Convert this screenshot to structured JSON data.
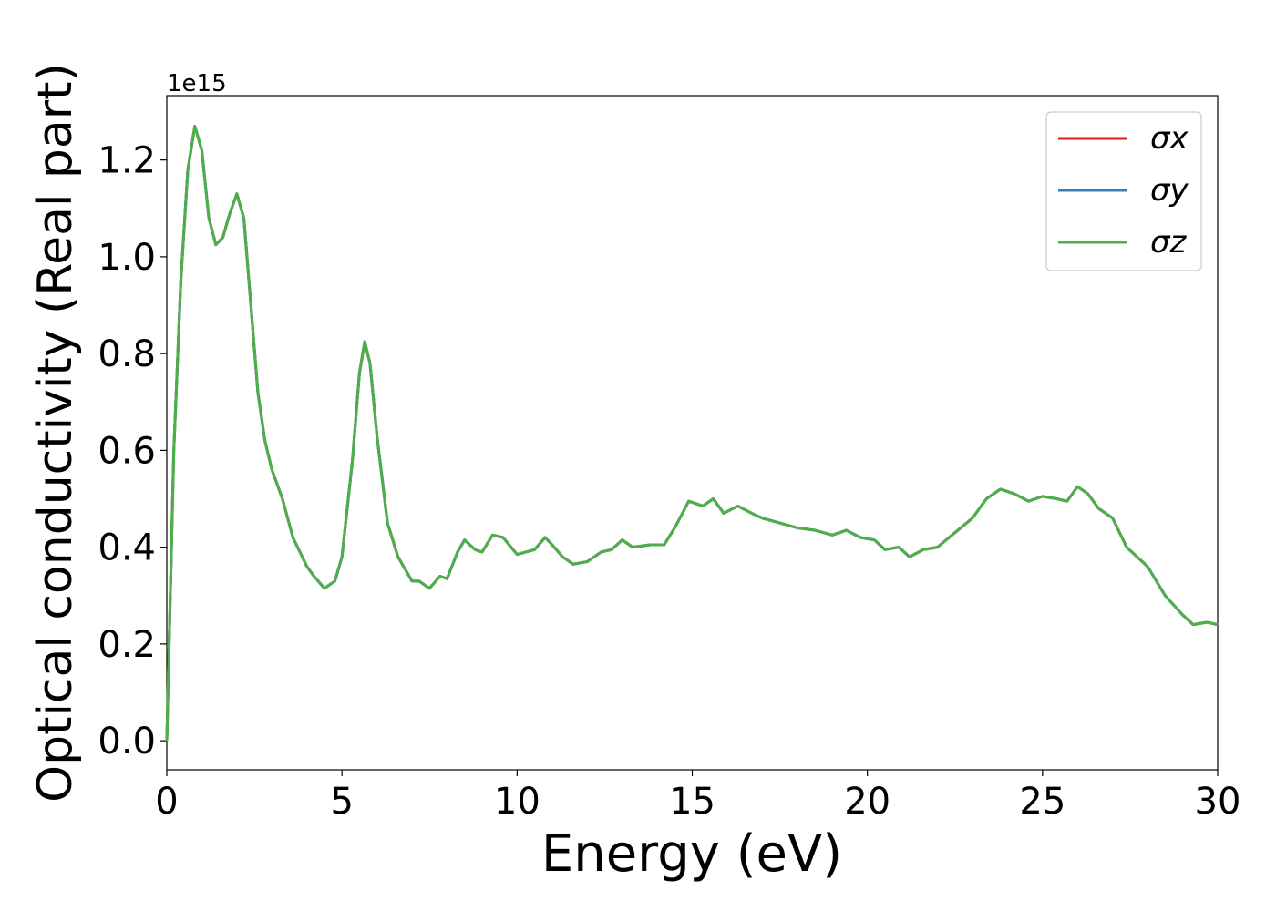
{
  "chart_data": {
    "type": "line",
    "xlabel": "Energy (eV)",
    "ylabel": "Optical conductivity (Real part)",
    "y_offset_label": "1e15",
    "x": [
      0,
      0.1,
      0.2,
      0.4,
      0.6,
      0.8,
      1.0,
      1.2,
      1.4,
      1.6,
      1.8,
      2.0,
      2.2,
      2.4,
      2.6,
      2.8,
      3.0,
      3.3,
      3.6,
      4.0,
      4.2,
      4.5,
      4.8,
      5.0,
      5.3,
      5.5,
      5.65,
      5.8,
      6.0,
      6.3,
      6.6,
      7.0,
      7.2,
      7.5,
      7.8,
      8.0,
      8.3,
      8.5,
      8.8,
      9.0,
      9.3,
      9.6,
      10.0,
      10.5,
      10.8,
      11.0,
      11.3,
      11.6,
      12.0,
      12.4,
      12.7,
      13.0,
      13.3,
      13.8,
      14.2,
      14.5,
      14.9,
      15.3,
      15.6,
      15.9,
      16.3,
      16.7,
      17.0,
      17.5,
      18.0,
      18.5,
      19.0,
      19.4,
      19.8,
      20.2,
      20.5,
      20.9,
      21.2,
      21.6,
      22.0,
      22.5,
      23.0,
      23.4,
      23.8,
      24.2,
      24.6,
      25.0,
      25.4,
      25.7,
      26.0,
      26.3,
      26.6,
      27.0,
      27.4,
      28.0,
      28.5,
      29.0,
      29.3,
      29.7,
      30.0
    ],
    "series": [
      {
        "name": "σx",
        "color": "#e41a1c",
        "values": [
          0,
          0.3,
          0.6,
          0.95,
          1.18,
          1.27,
          1.22,
          1.08,
          1.025,
          1.04,
          1.09,
          1.13,
          1.08,
          0.9,
          0.72,
          0.62,
          0.56,
          0.5,
          0.42,
          0.36,
          0.34,
          0.315,
          0.33,
          0.38,
          0.58,
          0.76,
          0.825,
          0.78,
          0.63,
          0.45,
          0.38,
          0.33,
          0.33,
          0.315,
          0.34,
          0.335,
          0.39,
          0.415,
          0.395,
          0.39,
          0.425,
          0.42,
          0.385,
          0.395,
          0.42,
          0.405,
          0.38,
          0.365,
          0.37,
          0.39,
          0.395,
          0.415,
          0.4,
          0.405,
          0.405,
          0.44,
          0.495,
          0.485,
          0.5,
          0.47,
          0.485,
          0.47,
          0.46,
          0.45,
          0.44,
          0.435,
          0.425,
          0.435,
          0.42,
          0.415,
          0.395,
          0.4,
          0.38,
          0.395,
          0.4,
          0.43,
          0.46,
          0.5,
          0.52,
          0.51,
          0.495,
          0.505,
          0.5,
          0.495,
          0.525,
          0.51,
          0.48,
          0.46,
          0.4,
          0.36,
          0.3,
          0.26,
          0.24,
          0.245,
          0.24
        ]
      },
      {
        "name": "σy",
        "color": "#377eb8",
        "values": [
          0,
          0.3,
          0.6,
          0.95,
          1.18,
          1.27,
          1.22,
          1.08,
          1.025,
          1.04,
          1.09,
          1.13,
          1.08,
          0.9,
          0.72,
          0.62,
          0.56,
          0.5,
          0.42,
          0.36,
          0.34,
          0.315,
          0.33,
          0.38,
          0.58,
          0.76,
          0.825,
          0.78,
          0.63,
          0.45,
          0.38,
          0.33,
          0.33,
          0.315,
          0.34,
          0.335,
          0.39,
          0.415,
          0.395,
          0.39,
          0.425,
          0.42,
          0.385,
          0.395,
          0.42,
          0.405,
          0.38,
          0.365,
          0.37,
          0.39,
          0.395,
          0.415,
          0.4,
          0.405,
          0.405,
          0.44,
          0.495,
          0.485,
          0.5,
          0.47,
          0.485,
          0.47,
          0.46,
          0.45,
          0.44,
          0.435,
          0.425,
          0.435,
          0.42,
          0.415,
          0.395,
          0.4,
          0.38,
          0.395,
          0.4,
          0.43,
          0.46,
          0.5,
          0.52,
          0.51,
          0.495,
          0.505,
          0.5,
          0.495,
          0.525,
          0.51,
          0.48,
          0.46,
          0.4,
          0.36,
          0.3,
          0.26,
          0.24,
          0.245,
          0.24
        ]
      },
      {
        "name": "σz",
        "color": "#4daf4a",
        "values": [
          0,
          0.3,
          0.6,
          0.95,
          1.18,
          1.27,
          1.22,
          1.08,
          1.025,
          1.04,
          1.09,
          1.13,
          1.08,
          0.9,
          0.72,
          0.62,
          0.56,
          0.5,
          0.42,
          0.36,
          0.34,
          0.315,
          0.33,
          0.38,
          0.58,
          0.76,
          0.825,
          0.78,
          0.63,
          0.45,
          0.38,
          0.33,
          0.33,
          0.315,
          0.34,
          0.335,
          0.39,
          0.415,
          0.395,
          0.39,
          0.425,
          0.42,
          0.385,
          0.395,
          0.42,
          0.405,
          0.38,
          0.365,
          0.37,
          0.39,
          0.395,
          0.415,
          0.4,
          0.405,
          0.405,
          0.44,
          0.495,
          0.485,
          0.5,
          0.47,
          0.485,
          0.47,
          0.46,
          0.45,
          0.44,
          0.435,
          0.425,
          0.435,
          0.42,
          0.415,
          0.395,
          0.4,
          0.38,
          0.395,
          0.4,
          0.43,
          0.46,
          0.5,
          0.52,
          0.51,
          0.495,
          0.505,
          0.5,
          0.495,
          0.525,
          0.51,
          0.48,
          0.46,
          0.4,
          0.36,
          0.3,
          0.26,
          0.24,
          0.245,
          0.24
        ]
      }
    ],
    "xlim": [
      0,
      30
    ],
    "xticks": [
      0,
      5,
      10,
      15,
      20,
      25,
      30
    ],
    "ylim": [
      -0.06,
      1.333
    ],
    "yticks": [
      {
        "value": 0,
        "label": "0.0"
      },
      0.2,
      0.4,
      0.6,
      0.8,
      {
        "value": 1,
        "label": "1.0"
      },
      1.2
    ],
    "grid": false,
    "legend": "upper right"
  }
}
